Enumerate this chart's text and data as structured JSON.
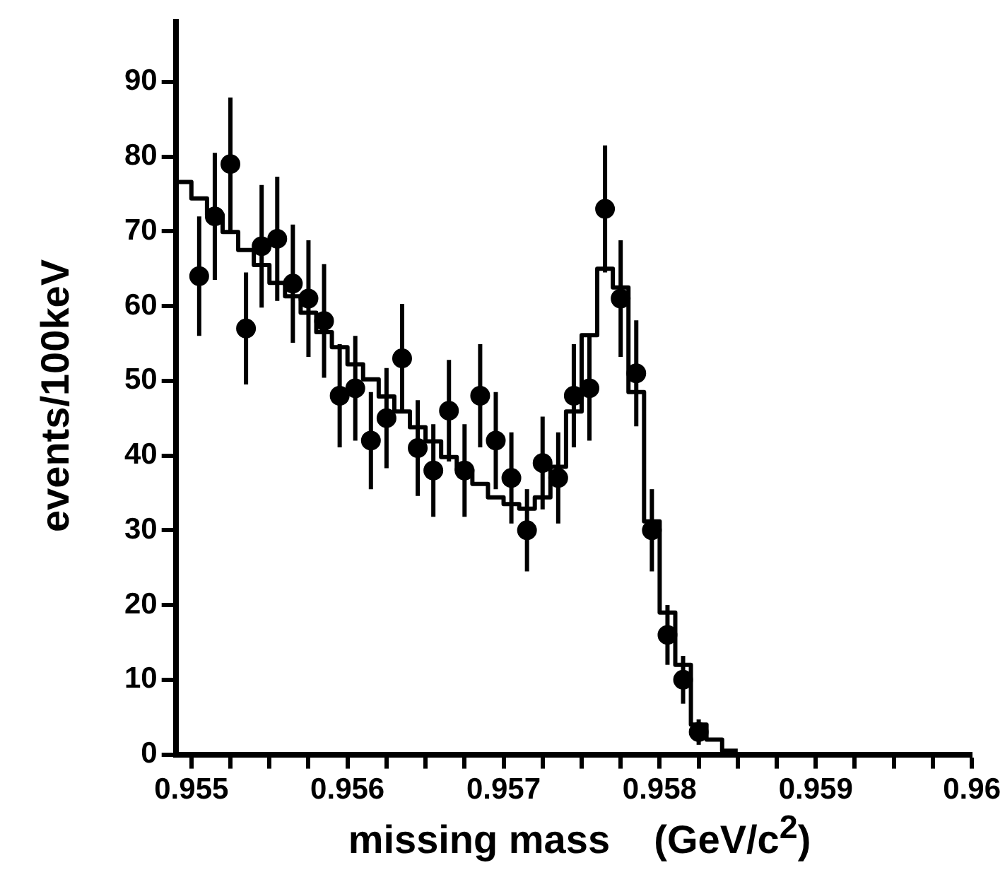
{
  "chart_data": {
    "type": "histogram",
    "xlabel": "missing mass    (GeV/c$^{2}$)",
    "ylabel": "events/100keV",
    "xlim": [
      0.9549,
      0.96
    ],
    "ylim": [
      0,
      98
    ],
    "xticks": [
      0.955,
      {
        "value": 0.95525,
        "label": null
      },
      {
        "value": 0.9555,
        "label": null
      },
      {
        "value": 0.95575,
        "label": null
      },
      0.956,
      {
        "value": 0.95625,
        "label": null
      },
      {
        "value": 0.9565,
        "label": null
      },
      {
        "value": 0.95675,
        "label": null
      },
      0.957,
      {
        "value": 0.95725,
        "label": null
      },
      {
        "value": 0.9575,
        "label": null
      },
      {
        "value": 0.95775,
        "label": null
      },
      0.958,
      {
        "value": 0.95825,
        "label": null
      },
      {
        "value": 0.9585,
        "label": null
      },
      {
        "value": 0.95875,
        "label": null
      },
      0.959,
      {
        "value": 0.95925,
        "label": null
      },
      {
        "value": 0.9595,
        "label": null
      },
      {
        "value": 0.95975,
        "label": null
      },
      0.96
    ],
    "yticks": [
      0,
      10,
      20,
      30,
      40,
      50,
      60,
      70,
      80,
      90
    ],
    "grid": false,
    "legend": false,
    "series": [
      {
        "color": "#000000",
        "bins": [
          0.9549,
          0.955,
          0.9551,
          0.9552,
          0.9553,
          0.9554,
          0.9555,
          0.9556,
          0.9557,
          0.9558,
          0.9559,
          0.956,
          0.9561,
          0.9562,
          0.9563,
          0.9564,
          0.9565,
          0.9566,
          0.9567,
          0.9568,
          0.9569,
          0.957,
          0.9571,
          0.9572,
          0.9573,
          0.9574,
          0.9575,
          0.9576,
          0.9577,
          0.9578,
          0.9579,
          0.958,
          0.9581,
          0.9582,
          0.9583,
          0.9584,
          0.9585
        ],
        "values": [
          76.6,
          74.4,
          72.2,
          69.9,
          67.5,
          65.5,
          63.1,
          61.3,
          59.1,
          56.5,
          54.5,
          52.2,
          50.2,
          47.9,
          45.9,
          43.8,
          41.9,
          39.8,
          38.1,
          36.2,
          34.4,
          33.5,
          32.9,
          34.4,
          38.5,
          45.9,
          56.1,
          65,
          62.5,
          48.5,
          31.2,
          19,
          12,
          4,
          2,
          0.5
        ]
      },
      {
        "type": "scatter",
        "color": "#000000",
        "marker": "circle",
        "x": [
          0.95505,
          0.95515,
          0.95525,
          0.95535,
          0.95545,
          0.95555,
          0.95565,
          0.95575,
          0.95585,
          0.95595,
          0.95605,
          0.95615,
          0.95625,
          0.95635,
          0.95645,
          0.95655,
          0.95665,
          0.95675,
          0.95685,
          0.95695,
          0.95705,
          0.95715,
          0.95725,
          0.95735,
          0.95745,
          0.95755,
          0.95765,
          0.95775,
          0.95785,
          0.95795,
          0.95805,
          0.95815,
          0.95825
        ],
        "values": [
          64,
          72,
          79,
          57,
          68,
          69,
          63,
          61,
          58,
          48,
          49,
          42,
          45,
          53,
          41,
          38,
          46,
          38,
          48,
          42,
          37,
          30,
          39,
          37,
          48,
          49,
          73,
          61,
          51,
          30,
          16,
          10,
          3
        ],
        "errors": [
          8,
          8.5,
          8.9,
          7.5,
          8.2,
          8.3,
          7.9,
          7.8,
          7.6,
          6.9,
          7,
          6.5,
          6.7,
          7.3,
          6.4,
          6.2,
          6.8,
          6.2,
          6.9,
          6.5,
          6.1,
          5.5,
          6.2,
          6.1,
          6.9,
          7,
          8.5,
          7.8,
          7.1,
          5.5,
          4,
          3.2,
          1.7
        ]
      }
    ]
  }
}
